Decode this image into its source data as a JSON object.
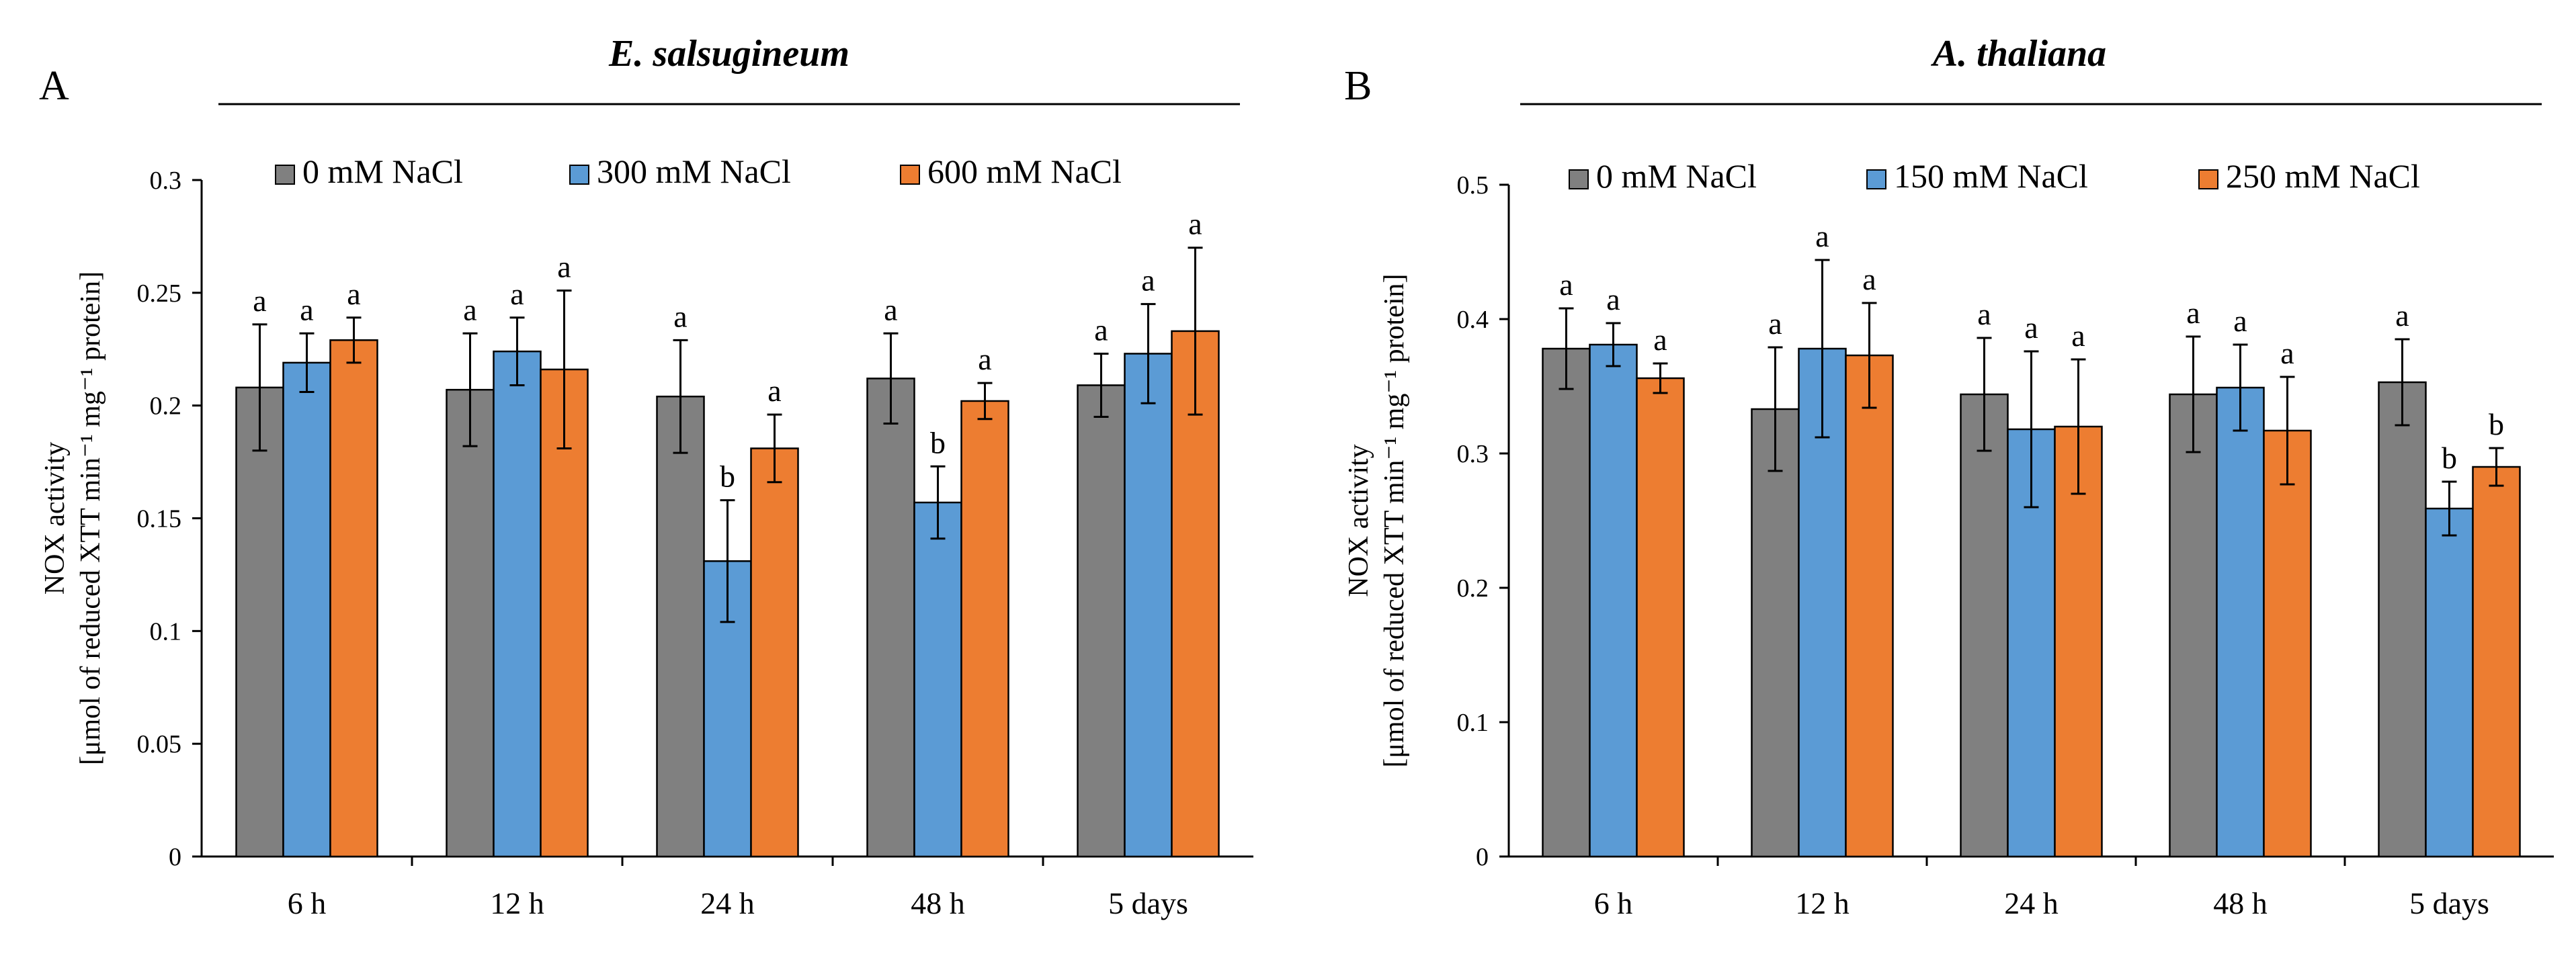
{
  "colors": {
    "gray": "#808080",
    "blue": "#5b9bd5",
    "orange": "#ed7d31",
    "axis": "#000000"
  },
  "panels": [
    {
      "label": "A",
      "title": "E. salsugineum",
      "ylabel_line1": "NOX activity",
      "ylabel_line2": "[μmol of reduced XTT min⁻¹ mg⁻¹ protein]",
      "chart_data": {
        "type": "bar",
        "title": "E. salsugineum",
        "xlabel": "",
        "ylabel": "NOX activity [μmol of reduced XTT min-1 mg-1 protein]",
        "ylim": [
          0,
          0.3
        ],
        "yticks": [
          0,
          0.05,
          0.1,
          0.15,
          0.2,
          0.25,
          0.3
        ],
        "ytick_labels": [
          "0",
          "0.05",
          "0.1",
          "0.15",
          "0.2",
          "0.25",
          "0.3"
        ],
        "legend_position": "top",
        "categories": [
          "6 h",
          "12 h",
          "24 h",
          "48 h",
          "5 days"
        ],
        "series": [
          {
            "name": "0 mM NaCl",
            "color": "#808080",
            "values": [
              0.208,
              0.207,
              0.204,
              0.212,
              0.209
            ],
            "errors": [
              0.028,
              0.025,
              0.025,
              0.02,
              0.014
            ],
            "letters": [
              "a",
              "a",
              "a",
              "a",
              "a"
            ]
          },
          {
            "name": "300 mM NaCl",
            "color": "#5b9bd5",
            "values": [
              0.219,
              0.224,
              0.131,
              0.157,
              0.223
            ],
            "errors": [
              0.013,
              0.015,
              0.027,
              0.016,
              0.022
            ],
            "letters": [
              "a",
              "a",
              "b",
              "b",
              "a"
            ]
          },
          {
            "name": "600 mM NaCl",
            "color": "#ed7d31",
            "values": [
              0.229,
              0.216,
              0.181,
              0.202,
              0.233
            ],
            "errors": [
              0.01,
              0.035,
              0.015,
              0.008,
              0.037
            ],
            "letters": [
              "a",
              "a",
              "a",
              "a",
              "a"
            ]
          }
        ]
      }
    },
    {
      "label": "B",
      "title": "A. thaliana",
      "ylabel_line1": "NOX activity",
      "ylabel_line2": "[μmol of reduced XTT min⁻¹ mg⁻¹ protein]",
      "chart_data": {
        "type": "bar",
        "title": "A. thaliana",
        "xlabel": "",
        "ylabel": "NOX activity [μmol of reduced XTT min-1 mg-1 protein]",
        "ylim": [
          0,
          0.5
        ],
        "yticks": [
          0,
          0.1,
          0.2,
          0.3,
          0.4,
          0.5
        ],
        "ytick_labels": [
          "0",
          "0.1",
          "0.2",
          "0.3",
          "0.4",
          "0.5"
        ],
        "legend_position": "top",
        "categories": [
          "6 h",
          "12 h",
          "24 h",
          "48 h",
          "5 days"
        ],
        "series": [
          {
            "name": "0 mM NaCl",
            "color": "#808080",
            "values": [
              0.378,
              0.333,
              0.344,
              0.344,
              0.353
            ],
            "errors": [
              0.03,
              0.046,
              0.042,
              0.043,
              0.032
            ],
            "letters": [
              "a",
              "a",
              "a",
              "a",
              "a"
            ]
          },
          {
            "name": "150 mM NaCl",
            "color": "#5b9bd5",
            "values": [
              0.381,
              0.378,
              0.318,
              0.349,
              0.259
            ],
            "errors": [
              0.016,
              0.066,
              0.058,
              0.032,
              0.02
            ],
            "letters": [
              "a",
              "a",
              "a",
              "a",
              "b"
            ]
          },
          {
            "name": "250 mM NaCl",
            "color": "#ed7d31",
            "values": [
              0.356,
              0.373,
              0.32,
              0.317,
              0.29
            ],
            "errors": [
              0.011,
              0.039,
              0.05,
              0.04,
              0.014
            ],
            "letters": [
              "a",
              "a",
              "a",
              "a",
              "b"
            ]
          }
        ]
      }
    }
  ]
}
